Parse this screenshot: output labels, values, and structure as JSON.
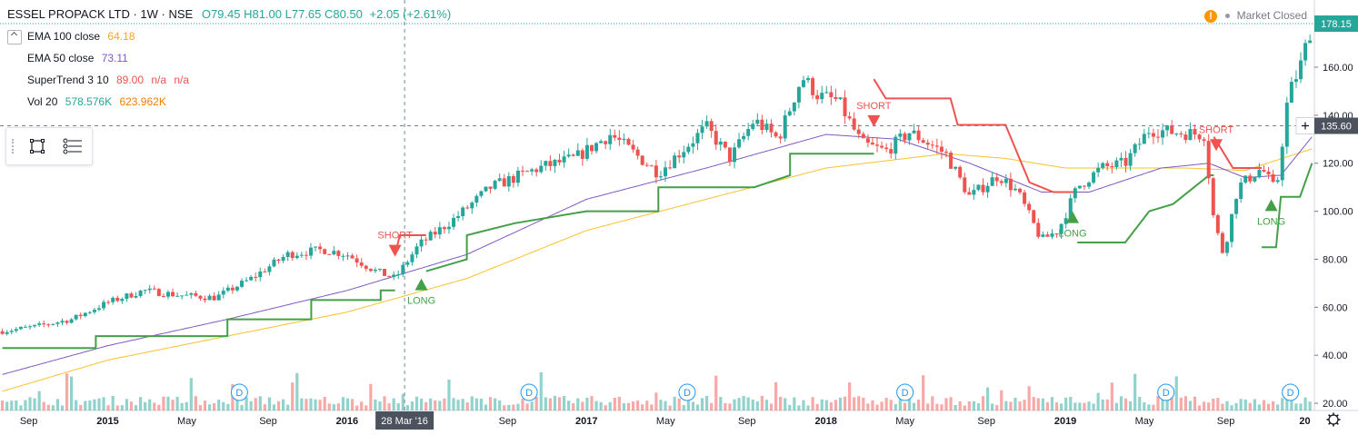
{
  "header": {
    "symbol": "ESSEL PROPACK LTD · 1W · NSE",
    "ohlc": "O79.45 H81.00 L77.65 C80.50",
    "change": "+2.05 (+2.61%)"
  },
  "indicators": [
    {
      "label": "EMA 100 close",
      "v1": "64.18",
      "v2": "",
      "v3": "",
      "color1": "#f5a623"
    },
    {
      "label": "EMA 50 close",
      "v1": "73.11",
      "v2": "",
      "v3": "",
      "color1": "#7e57c2"
    },
    {
      "label": "SuperTrend 3 10",
      "v1": "89.00",
      "v2": "n/a",
      "v3": "n/a",
      "color1": "#ef5350"
    },
    {
      "label": "Vol 20",
      "v1": "578.576K",
      "v2": "623.962K",
      "v3": "",
      "color1": "#26a69a",
      "color2": "#f57c00"
    }
  ],
  "market_status": {
    "icon": "!",
    "text": "Market Closed"
  },
  "icons": {
    "rectangle_tool": "rectangle-icon",
    "lines_tool": "horizontal-lines-icon",
    "settings": "gear-icon",
    "crosshair": "plus-icon"
  },
  "colors": {
    "up": "#26a69a",
    "down": "#ef5350",
    "ema100": "#fbc02d",
    "ema50": "#7e57c2",
    "supertrend_up": "#43a047",
    "supertrend_down": "#ef5350"
  },
  "chart_data": {
    "type": "candlestick",
    "y_ticks": [
      "20.00",
      "40.00",
      "60.00",
      "80.00",
      "100.00",
      "120.00",
      "140.00",
      "160.00"
    ],
    "ylim": [
      17,
      188
    ],
    "x_ticks": [
      "Sep",
      "2015",
      "May",
      "Sep",
      "2016",
      "Sep",
      "2017",
      "May",
      "Sep",
      "2018",
      "May",
      "Sep",
      "2019",
      "May",
      "Sep",
      "20"
    ],
    "x_tick_dates": [
      2014.67,
      2015.0,
      2015.33,
      2015.67,
      2016.0,
      2016.67,
      2017.0,
      2017.33,
      2017.67,
      2018.0,
      2018.33,
      2018.67,
      2019.0,
      2019.33,
      2019.67,
      2020.0
    ],
    "xlim": [
      2014.55,
      2020.04
    ],
    "last_price_label": "178.15",
    "crosshair_price_label": "135.60",
    "crosshair_date_label": "28 Mar '16",
    "crosshair": {
      "date": 2016.24,
      "price": 135.6
    },
    "price_anchors": [
      [
        2014.56,
        50
      ],
      [
        2014.7,
        52
      ],
      [
        2014.85,
        55
      ],
      [
        2015.0,
        62
      ],
      [
        2015.15,
        67
      ],
      [
        2015.3,
        65
      ],
      [
        2015.45,
        64
      ],
      [
        2015.6,
        72
      ],
      [
        2015.75,
        82
      ],
      [
        2015.9,
        84
      ],
      [
        2016.0,
        82
      ],
      [
        2016.12,
        75
      ],
      [
        2016.2,
        72
      ],
      [
        2016.3,
        86
      ],
      [
        2016.45,
        97
      ],
      [
        2016.6,
        110
      ],
      [
        2016.8,
        118
      ],
      [
        2016.95,
        122
      ],
      [
        2017.1,
        132
      ],
      [
        2017.3,
        116
      ],
      [
        2017.5,
        135
      ],
      [
        2017.6,
        122
      ],
      [
        2017.7,
        138
      ],
      [
        2017.8,
        130
      ],
      [
        2017.9,
        156
      ],
      [
        2017.97,
        148
      ],
      [
        2018.05,
        146
      ],
      [
        2018.15,
        128
      ],
      [
        2018.25,
        125
      ],
      [
        2018.35,
        133
      ],
      [
        2018.5,
        124
      ],
      [
        2018.6,
        106
      ],
      [
        2018.72,
        115
      ],
      [
        2018.8,
        108
      ],
      [
        2018.9,
        88
      ],
      [
        2018.97,
        92
      ],
      [
        2019.05,
        110
      ],
      [
        2019.15,
        118
      ],
      [
        2019.25,
        120
      ],
      [
        2019.35,
        134
      ],
      [
        2019.45,
        133
      ],
      [
        2019.58,
        132
      ],
      [
        2019.62,
        96
      ],
      [
        2019.66,
        82
      ],
      [
        2019.72,
        110
      ],
      [
        2019.82,
        118
      ],
      [
        2019.88,
        108
      ],
      [
        2019.93,
        148
      ],
      [
        2019.98,
        160
      ],
      [
        2020.03,
        178
      ]
    ],
    "ema100": [
      [
        2014.56,
        25
      ],
      [
        2015.0,
        38
      ],
      [
        2015.5,
        48
      ],
      [
        2016.0,
        58
      ],
      [
        2016.5,
        72
      ],
      [
        2017.0,
        92
      ],
      [
        2017.5,
        105
      ],
      [
        2018.0,
        118
      ],
      [
        2018.5,
        124
      ],
      [
        2018.75,
        122
      ],
      [
        2019.0,
        118
      ],
      [
        2019.5,
        118
      ],
      [
        2019.75,
        117
      ],
      [
        2020.03,
        126
      ]
    ],
    "ema50": [
      [
        2014.56,
        32
      ],
      [
        2015.0,
        44
      ],
      [
        2015.5,
        55
      ],
      [
        2016.0,
        67
      ],
      [
        2016.5,
        82
      ],
      [
        2017.0,
        105
      ],
      [
        2017.5,
        118
      ],
      [
        2018.0,
        132
      ],
      [
        2018.3,
        130
      ],
      [
        2018.6,
        120
      ],
      [
        2018.9,
        108
      ],
      [
        2019.1,
        108
      ],
      [
        2019.4,
        118
      ],
      [
        2019.6,
        120
      ],
      [
        2019.75,
        114
      ],
      [
        2019.9,
        115
      ],
      [
        2020.03,
        131
      ]
    ],
    "supertrend": [
      {
        "dir": "up",
        "points": [
          [
            2014.56,
            43
          ],
          [
            2014.95,
            43
          ],
          [
            2014.95,
            48
          ],
          [
            2015.5,
            48
          ],
          [
            2015.5,
            55
          ],
          [
            2015.85,
            55
          ],
          [
            2015.85,
            63
          ],
          [
            2016.14,
            63
          ],
          [
            2016.14,
            67
          ],
          [
            2016.2,
            67
          ]
        ]
      },
      {
        "dir": "down",
        "points": [
          [
            2016.2,
            82
          ],
          [
            2016.22,
            90
          ],
          [
            2016.33,
            90
          ]
        ]
      },
      {
        "dir": "up",
        "points": [
          [
            2016.33,
            75
          ],
          [
            2016.5,
            80
          ],
          [
            2016.5,
            90
          ],
          [
            2016.7,
            95
          ],
          [
            2017.0,
            100
          ],
          [
            2017.3,
            100
          ],
          [
            2017.3,
            110
          ],
          [
            2017.7,
            110
          ],
          [
            2017.85,
            115
          ],
          [
            2017.85,
            124
          ],
          [
            2018.2,
            124
          ]
        ]
      },
      {
        "dir": "down",
        "points": [
          [
            2018.2,
            155
          ],
          [
            2018.25,
            147
          ],
          [
            2018.52,
            147
          ],
          [
            2018.55,
            136
          ],
          [
            2018.75,
            136
          ],
          [
            2018.85,
            112
          ],
          [
            2018.95,
            108
          ],
          [
            2019.05,
            108
          ]
        ]
      },
      {
        "dir": "up",
        "points": [
          [
            2019.05,
            87
          ],
          [
            2019.25,
            87
          ],
          [
            2019.35,
            100
          ],
          [
            2019.45,
            103
          ],
          [
            2019.6,
            115
          ],
          [
            2019.62,
            115
          ]
        ]
      },
      {
        "dir": "down",
        "points": [
          [
            2019.62,
            131
          ],
          [
            2019.7,
            118
          ],
          [
            2019.82,
            118
          ]
        ]
      },
      {
        "dir": "up",
        "points": [
          [
            2019.82,
            85
          ],
          [
            2019.88,
            85
          ],
          [
            2019.9,
            106
          ],
          [
            2019.98,
            106
          ],
          [
            2020.03,
            120
          ]
        ]
      }
    ],
    "signals": [
      {
        "type": "SHORT",
        "date": 2016.2,
        "price": 86
      },
      {
        "type": "LONG",
        "date": 2016.31,
        "price": 72
      },
      {
        "type": "SHORT",
        "date": 2018.2,
        "price": 140
      },
      {
        "type": "LONG",
        "date": 2019.03,
        "price": 100
      },
      {
        "type": "SHORT",
        "date": 2019.63,
        "price": 130
      },
      {
        "type": "LONG",
        "date": 2019.86,
        "price": 105
      }
    ],
    "dividends": [
      2015.55,
      2016.76,
      2017.42,
      2018.33,
      2019.42,
      2019.94
    ],
    "dividend_label": "D",
    "volume_note": "relative heights, 0..1 of pane"
  }
}
